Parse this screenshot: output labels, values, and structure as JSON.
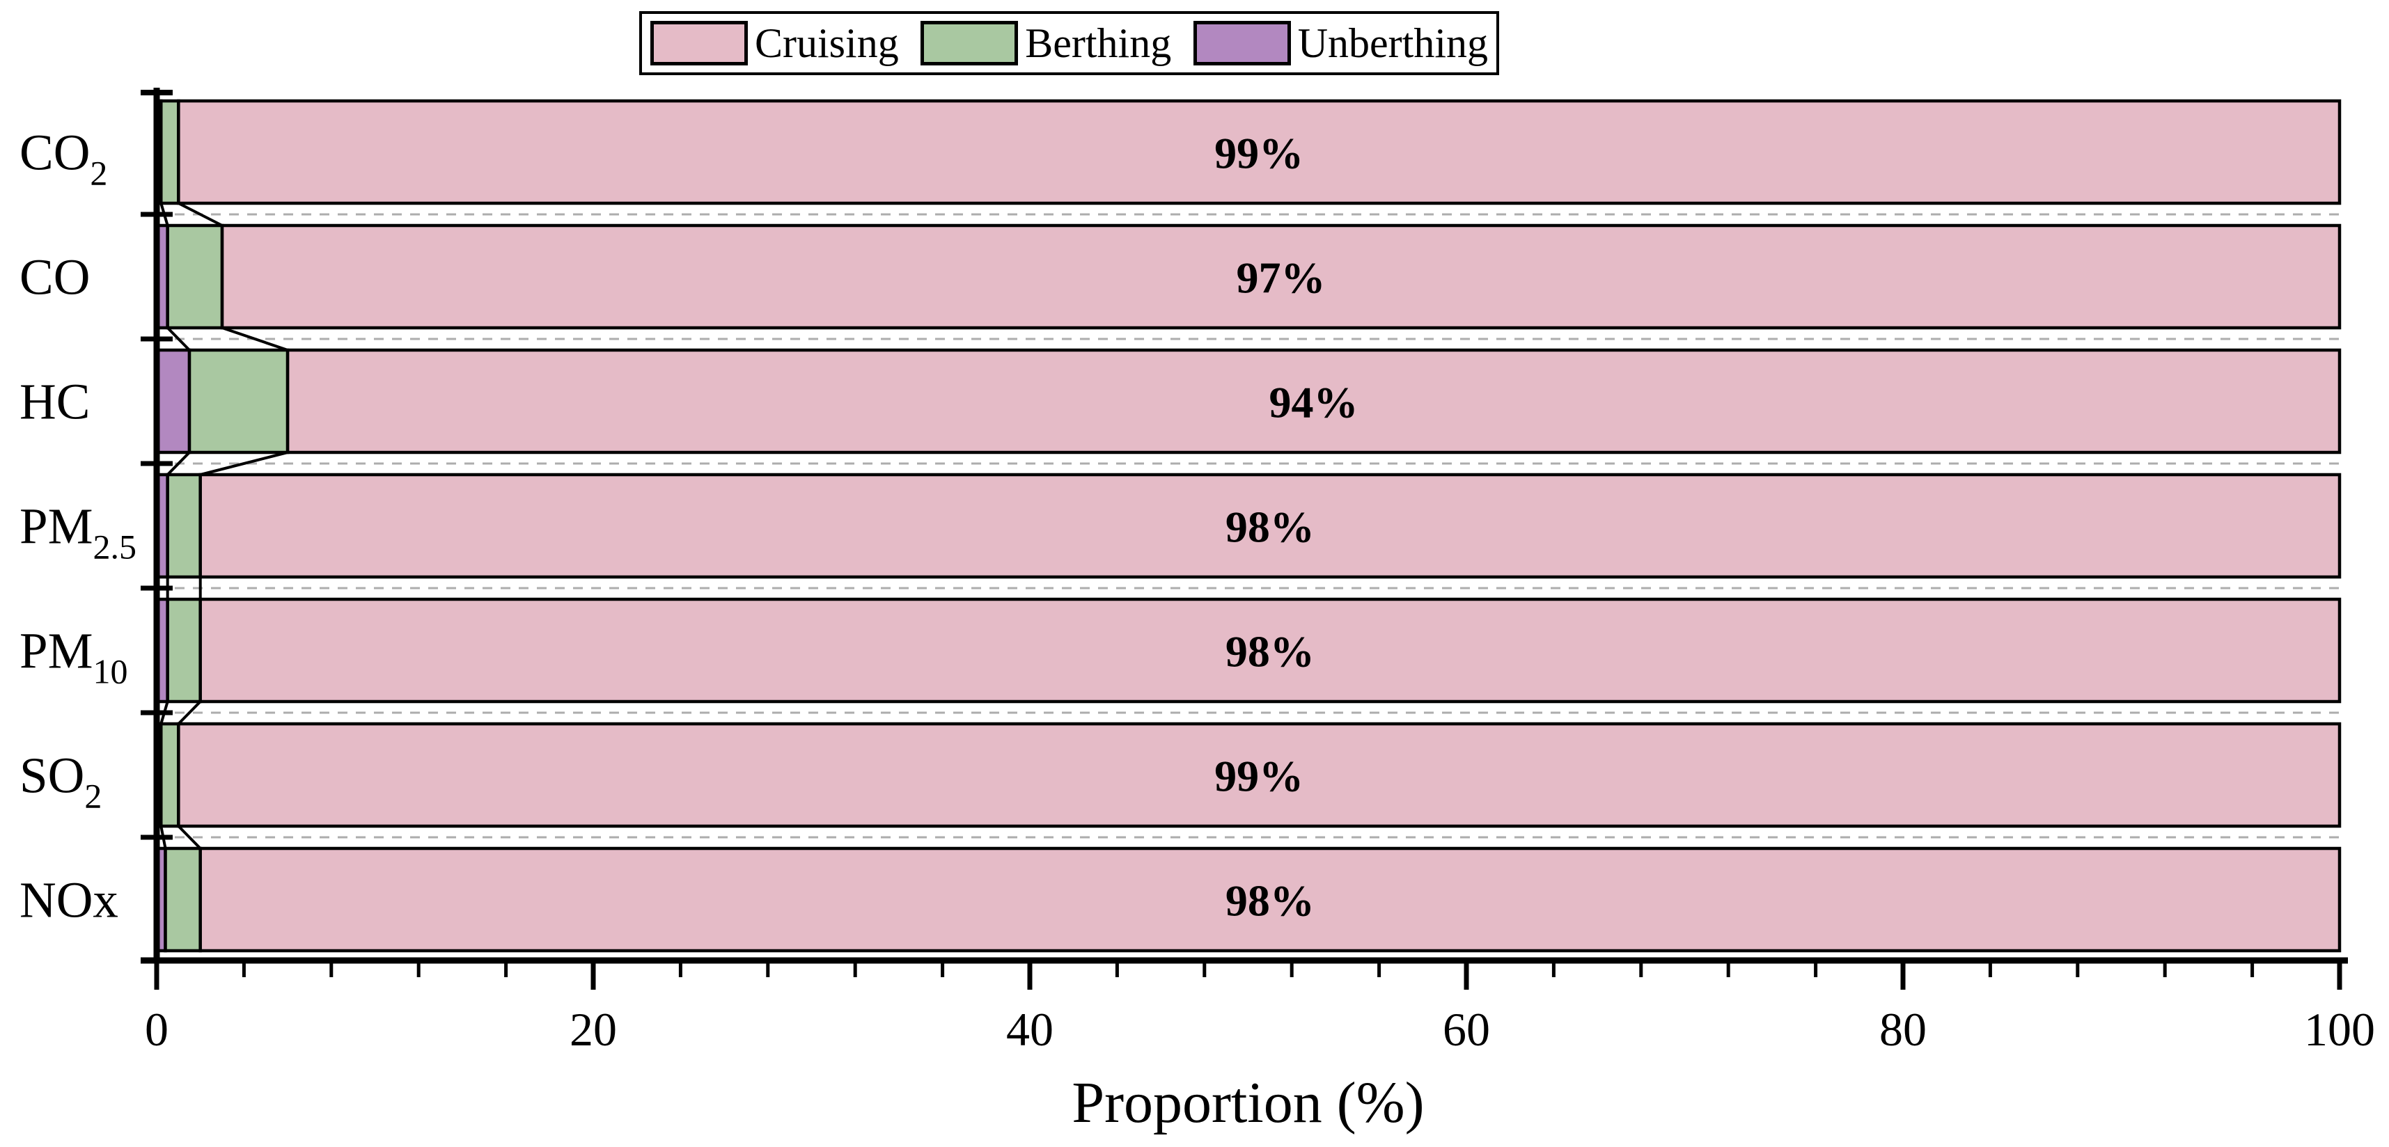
{
  "chart_data": {
    "type": "bar",
    "orientation": "horizontal",
    "stacked": true,
    "title": "",
    "xlabel": "Proportion (%)",
    "xlim": [
      0,
      100
    ],
    "x_major_ticks": [
      0,
      20,
      40,
      60,
      80,
      100
    ],
    "x_minor_tick_step": 4,
    "grid": "dashed gray separator line between each category row",
    "legend_position": "top-center",
    "legend_entries": [
      "Cruising",
      "Berthing",
      "Unberthing"
    ],
    "categories": [
      {
        "label": "CO2",
        "base": "CO",
        "sub": "2"
      },
      {
        "label": "CO",
        "base": "CO",
        "sub": ""
      },
      {
        "label": "HC",
        "base": "HC",
        "sub": ""
      },
      {
        "label": "PM2.5",
        "base": "PM",
        "sub": "2.5"
      },
      {
        "label": "PM10",
        "base": "PM",
        "sub": "10"
      },
      {
        "label": "SO2",
        "base": "SO",
        "sub": "2"
      },
      {
        "label": "NOx",
        "base": "NOx",
        "sub": ""
      }
    ],
    "series": [
      {
        "name": "Cruising",
        "color": "#e5bbc7",
        "values": [
          99,
          97,
          94,
          98,
          98,
          99,
          98
        ]
      },
      {
        "name": "Berthing",
        "color": "#a9c8a1",
        "values": [
          0.8,
          2.5,
          4.5,
          1.5,
          1.5,
          0.8,
          1.6
        ]
      },
      {
        "name": "Unberthing",
        "color": "#b288c0",
        "values": [
          0.2,
          0.5,
          1.5,
          0.5,
          0.5,
          0.2,
          0.4
        ]
      }
    ],
    "stack_left_to_right": [
      "Unberthing",
      "Berthing",
      "Cruising"
    ],
    "bar_labels": [
      "99%",
      "97%",
      "94%",
      "98%",
      "98%",
      "99%",
      "98%"
    ],
    "bar_label_series": "Cruising",
    "axis_color": "#000000",
    "bar_border_color": "#000000",
    "connector_color": "#000000",
    "separator_color": "#adadad",
    "background_color": "#ffffff"
  }
}
